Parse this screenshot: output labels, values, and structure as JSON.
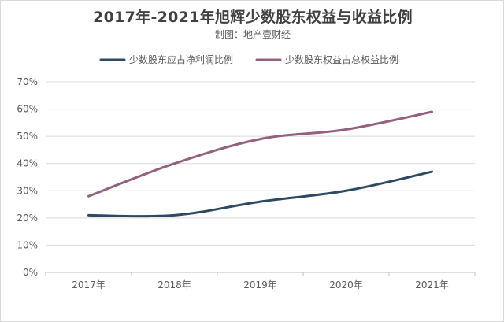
{
  "chart_data": {
    "type": "line",
    "title": "2017年-2021年旭辉少数股东权益与收益比例",
    "subtitle": "制图：地产壹财经",
    "categories": [
      "2017年",
      "2018年",
      "2019年",
      "2020年",
      "2021年"
    ],
    "series": [
      {
        "name": "少数股东应占净利润比例",
        "values": [
          21,
          21,
          26,
          30,
          37
        ],
        "color": "#2e4a62"
      },
      {
        "name": "少数股东权益占总权益比例",
        "values": [
          28,
          40,
          49,
          52.5,
          59
        ],
        "color": "#93607e"
      }
    ],
    "ylim": [
      0,
      70
    ],
    "yticks": [
      "0%",
      "10%",
      "20%",
      "30%",
      "40%",
      "50%",
      "60%",
      "70%"
    ],
    "grid": true,
    "legend_position": "top"
  }
}
